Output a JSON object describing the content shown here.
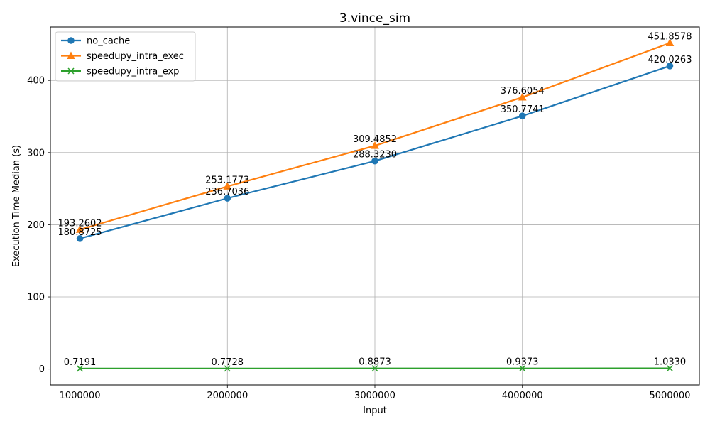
{
  "chart_data": {
    "type": "line",
    "title": "3.vince_sim",
    "xlabel": "Input",
    "ylabel": "Execution Time Median (s)",
    "x": [
      1000000,
      2000000,
      3000000,
      4000000,
      5000000
    ],
    "x_tick_labels": [
      "1000000",
      "2000000",
      "3000000",
      "4000000",
      "5000000"
    ],
    "xlim": [
      800000,
      5200000
    ],
    "ylim": [
      -22,
      474
    ],
    "y_ticks": [
      0,
      100,
      200,
      300,
      400
    ],
    "y_tick_labels": [
      "0",
      "100",
      "200",
      "300",
      "400"
    ],
    "grid": true,
    "legend_position": "top-left",
    "series": [
      {
        "name": "no_cache",
        "color": "#1f77b4",
        "marker": "circle",
        "values": [
          180.8725,
          236.7036,
          288.323,
          350.7741,
          420.0263
        ],
        "labels": [
          "180.8725",
          "236.7036",
          "288.3230",
          "350.7741",
          "420.0263"
        ]
      },
      {
        "name": "speedupy_intra_exec",
        "color": "#ff7f0e",
        "marker": "triangle",
        "values": [
          193.2602,
          253.1773,
          309.4852,
          376.6054,
          451.8578
        ],
        "labels": [
          "193.2602",
          "253.1773",
          "309.4852",
          "376.6054",
          "451.8578"
        ]
      },
      {
        "name": "speedupy_intra_exp",
        "color": "#2ca02c",
        "marker": "x",
        "values": [
          0.7191,
          0.7728,
          0.8873,
          0.9373,
          1.033
        ],
        "labels": [
          "0.7191",
          "0.7728",
          "0.8873",
          "0.9373",
          "1.0330"
        ]
      }
    ]
  }
}
